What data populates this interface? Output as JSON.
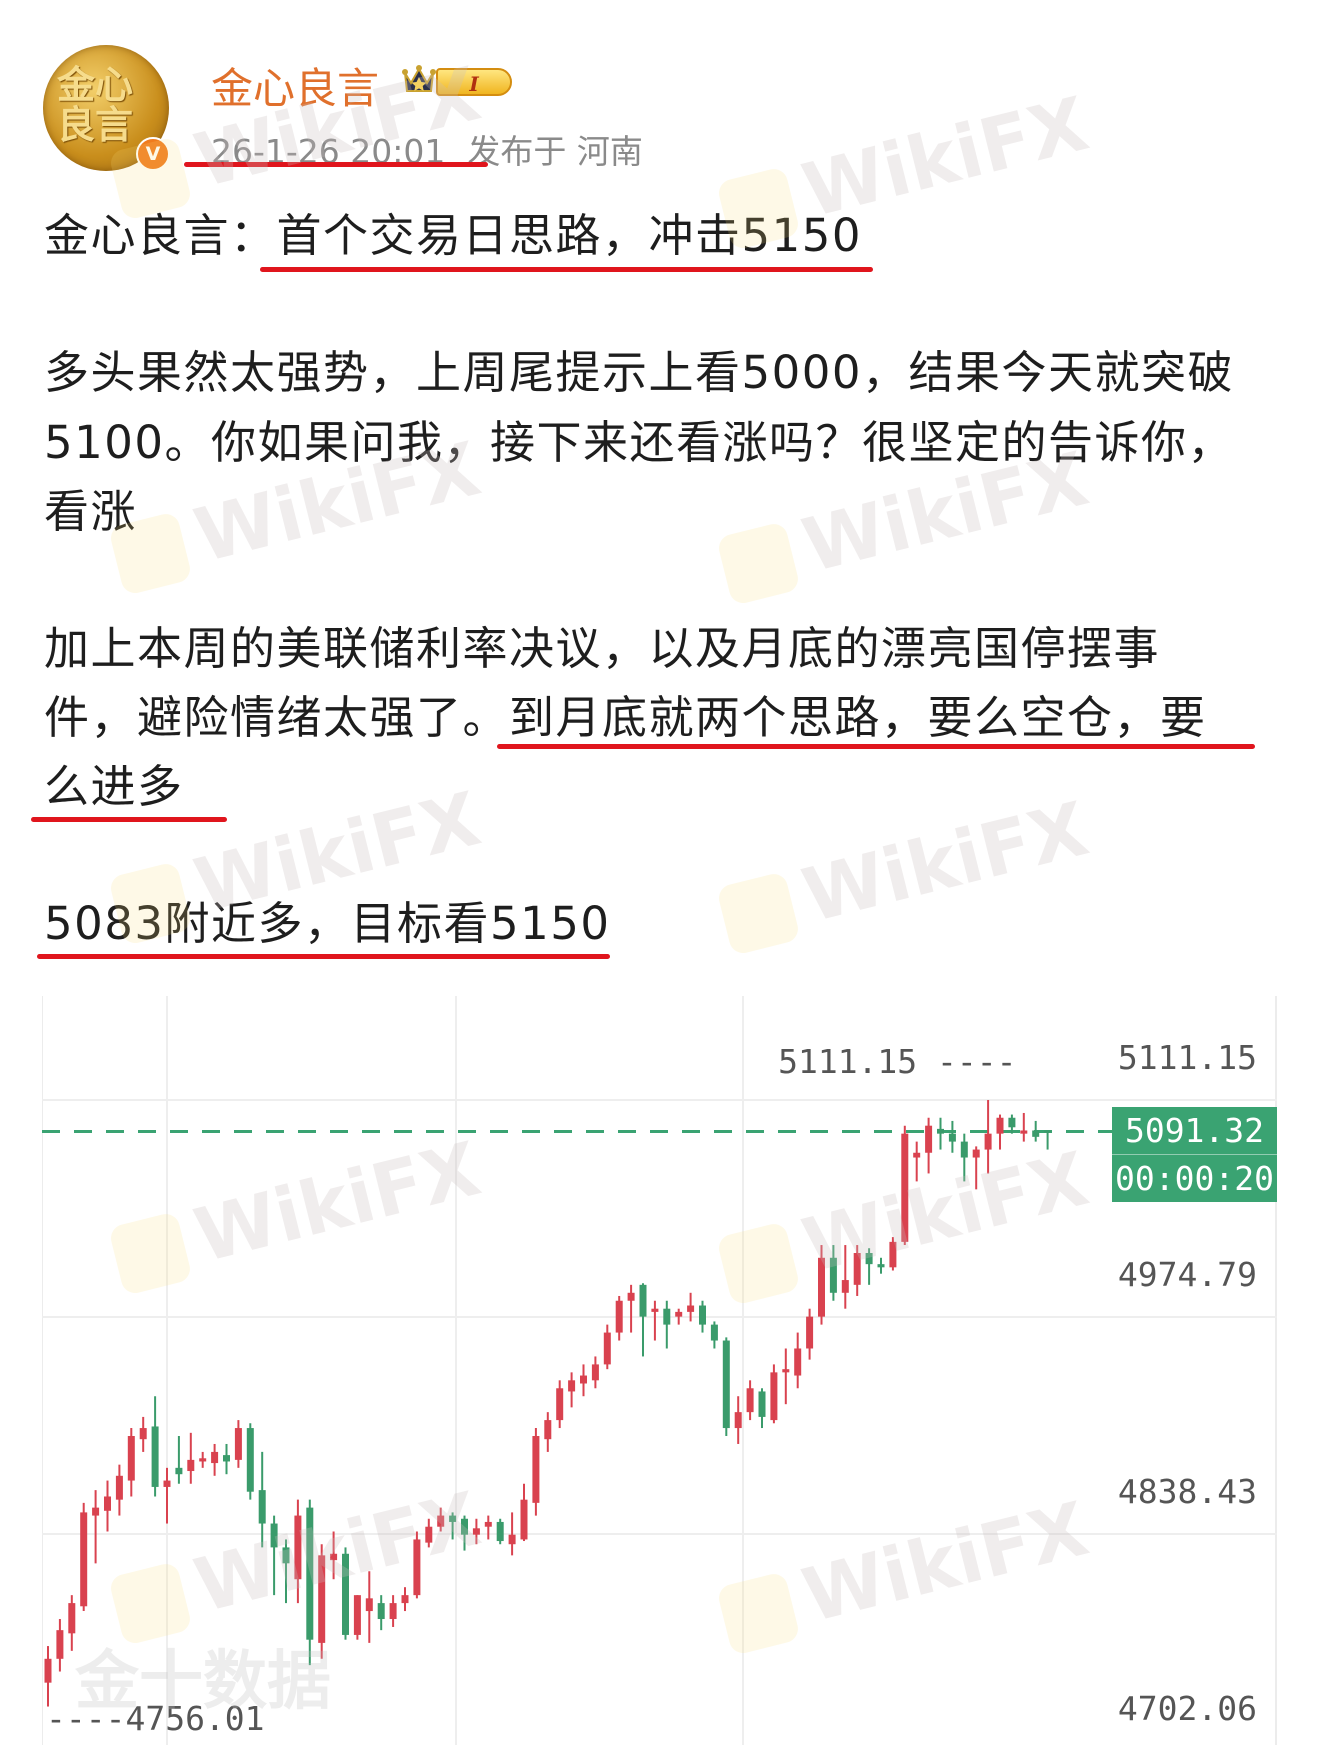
{
  "post": {
    "author": {
      "name": "金心良言",
      "avatar_text": "金心良言",
      "verified_badge": "V",
      "level_badge": "I"
    },
    "meta": {
      "timestamp": "26-1-26 20:01",
      "location": "发布于 河南"
    },
    "title": {
      "prefix": "金心良言：",
      "headline": "首个交易日思路，冲击5150"
    },
    "paragraph1": [
      "多头果然太强势，上周尾提示上看5000，结果今天就突破",
      "5100。你如果问我，接下来还看涨吗？很坚定的告诉你，",
      "看涨"
    ],
    "paragraph2": {
      "line1": "加上本周的美联储利率决议，以及月底的漂亮国停摆事",
      "line2_plain": "件，避险情绪太强了。",
      "line2_highlight": "到月底就两个思路，要么空仓，要",
      "line3": "么进多"
    },
    "trade_line": "5083附近多，目标看5150",
    "highlight_color": "#e0151d"
  },
  "watermark": "WikiFX",
  "chart_source_watermark": "金十数据",
  "chart_data": {
    "type": "candlestick",
    "y_ticks": [
      "5111.15",
      "4974.79",
      "4838.43",
      "4702.06"
    ],
    "ylim": [
      4702.06,
      5111.15
    ],
    "grid": true,
    "high_annotation": "5111.15 ----",
    "low_annotation": "----4756.01",
    "current_price": "5091.32",
    "countdown": "00:00:20",
    "colors": {
      "up": "#d9424f",
      "down": "#3a9b6b",
      "current": "#3aa372"
    },
    "ohlc": [
      [
        4745,
        4768,
        4730,
        4760
      ],
      [
        4760,
        4785,
        4752,
        4778
      ],
      [
        4776,
        4800,
        4765,
        4795
      ],
      [
        4793,
        4858,
        4790,
        4852
      ],
      [
        4850,
        4866,
        4820,
        4855
      ],
      [
        4853,
        4872,
        4840,
        4862
      ],
      [
        4860,
        4882,
        4850,
        4875
      ],
      [
        4872,
        4905,
        4862,
        4900
      ],
      [
        4898,
        4912,
        4890,
        4905
      ],
      [
        4906,
        4925,
        4862,
        4868
      ],
      [
        4868,
        4880,
        4845,
        4872
      ],
      [
        4880,
        4900,
        4870,
        4876
      ],
      [
        4878,
        4902,
        4870,
        4885
      ],
      [
        4884,
        4890,
        4880,
        4886
      ],
      [
        4883,
        4895,
        4875,
        4890
      ],
      [
        4888,
        4895,
        4876,
        4884
      ],
      [
        4885,
        4910,
        4880,
        4905
      ],
      [
        4905,
        4908,
        4860,
        4865
      ],
      [
        4866,
        4890,
        4830,
        4845
      ],
      [
        4845,
        4850,
        4800,
        4830
      ],
      [
        4830,
        4835,
        4795,
        4820
      ],
      [
        4810,
        4860,
        4795,
        4850
      ],
      [
        4855,
        4860,
        4756.01,
        4772
      ],
      [
        4770,
        4832,
        4760,
        4825
      ],
      [
        4822,
        4840,
        4810,
        4826
      ],
      [
        4826,
        4830,
        4772,
        4775
      ],
      [
        4775,
        4800,
        4772,
        4800
      ],
      [
        4790,
        4815,
        4770,
        4798
      ],
      [
        4795,
        4800,
        4778,
        4785
      ],
      [
        4785,
        4800,
        4780,
        4795
      ],
      [
        4795,
        4805,
        4790,
        4800
      ],
      [
        4800,
        4840,
        4798,
        4835
      ],
      [
        4833,
        4848,
        4830,
        4843
      ],
      [
        4843,
        4855,
        4840,
        4850
      ],
      [
        4850,
        4852,
        4835,
        4846
      ],
      [
        4848,
        4850,
        4828,
        4838
      ],
      [
        4838,
        4848,
        4832,
        4842
      ],
      [
        4843,
        4850,
        4835,
        4846
      ],
      [
        4846,
        4848,
        4832,
        4834
      ],
      [
        4832,
        4852,
        4825,
        4838
      ],
      [
        4835,
        4870,
        4834,
        4860
      ],
      [
        4858,
        4905,
        4850,
        4900
      ],
      [
        4898,
        4915,
        4890,
        4910
      ],
      [
        4910,
        4935,
        4905,
        4930
      ],
      [
        4928,
        4940,
        4918,
        4935
      ],
      [
        4933,
        4945,
        4925,
        4938
      ],
      [
        4935,
        4950,
        4930,
        4945
      ],
      [
        4945,
        4970,
        4942,
        4965
      ],
      [
        4965,
        4988,
        4960,
        4985
      ],
      [
        4985,
        4995,
        4965,
        4990
      ],
      [
        4995,
        4996,
        4950,
        4975
      ],
      [
        4978,
        4985,
        4960,
        4980
      ],
      [
        4980,
        4985,
        4955,
        4970
      ],
      [
        4975,
        4980,
        4970,
        4978
      ],
      [
        4978,
        4990,
        4972,
        4982
      ],
      [
        4982,
        4985,
        4965,
        4970
      ],
      [
        4970,
        4972,
        4955,
        4960
      ],
      [
        4960,
        4962,
        4900,
        4905
      ],
      [
        4905,
        4925,
        4895,
        4915
      ],
      [
        4915,
        4935,
        4910,
        4930
      ],
      [
        4928,
        4930,
        4905,
        4912
      ],
      [
        4910,
        4945,
        4908,
        4940
      ],
      [
        4940,
        4955,
        4920,
        4942
      ],
      [
        4938,
        4965,
        4930,
        4955
      ],
      [
        4955,
        4980,
        4948,
        4975
      ],
      [
        4975,
        5020,
        4970,
        5012
      ],
      [
        5012,
        5020,
        4985,
        4990
      ],
      [
        4990,
        5020,
        4980,
        4998
      ],
      [
        4995,
        5020,
        4988,
        5015
      ],
      [
        5015,
        5018,
        4995,
        5008
      ],
      [
        5008,
        5012,
        5002,
        5006
      ],
      [
        5006,
        5025,
        5004,
        5022
      ],
      [
        5022,
        5095,
        5020,
        5090
      ],
      [
        5075,
        5085,
        5060,
        5078
      ],
      [
        5078,
        5100,
        5065,
        5095
      ],
      [
        5093,
        5100,
        5080,
        5090
      ],
      [
        5090,
        5098,
        5078,
        5085
      ],
      [
        5085,
        5090,
        5060,
        5075
      ],
      [
        5075,
        5082,
        5055,
        5080
      ],
      [
        5080,
        5111.15,
        5065,
        5090
      ],
      [
        5090,
        5102,
        5080,
        5100
      ],
      [
        5100,
        5102,
        5090,
        5094
      ],
      [
        5090,
        5103,
        5085,
        5092
      ],
      [
        5092,
        5098,
        5085,
        5088
      ],
      [
        5092,
        5092,
        5080,
        5091.32
      ]
    ]
  }
}
